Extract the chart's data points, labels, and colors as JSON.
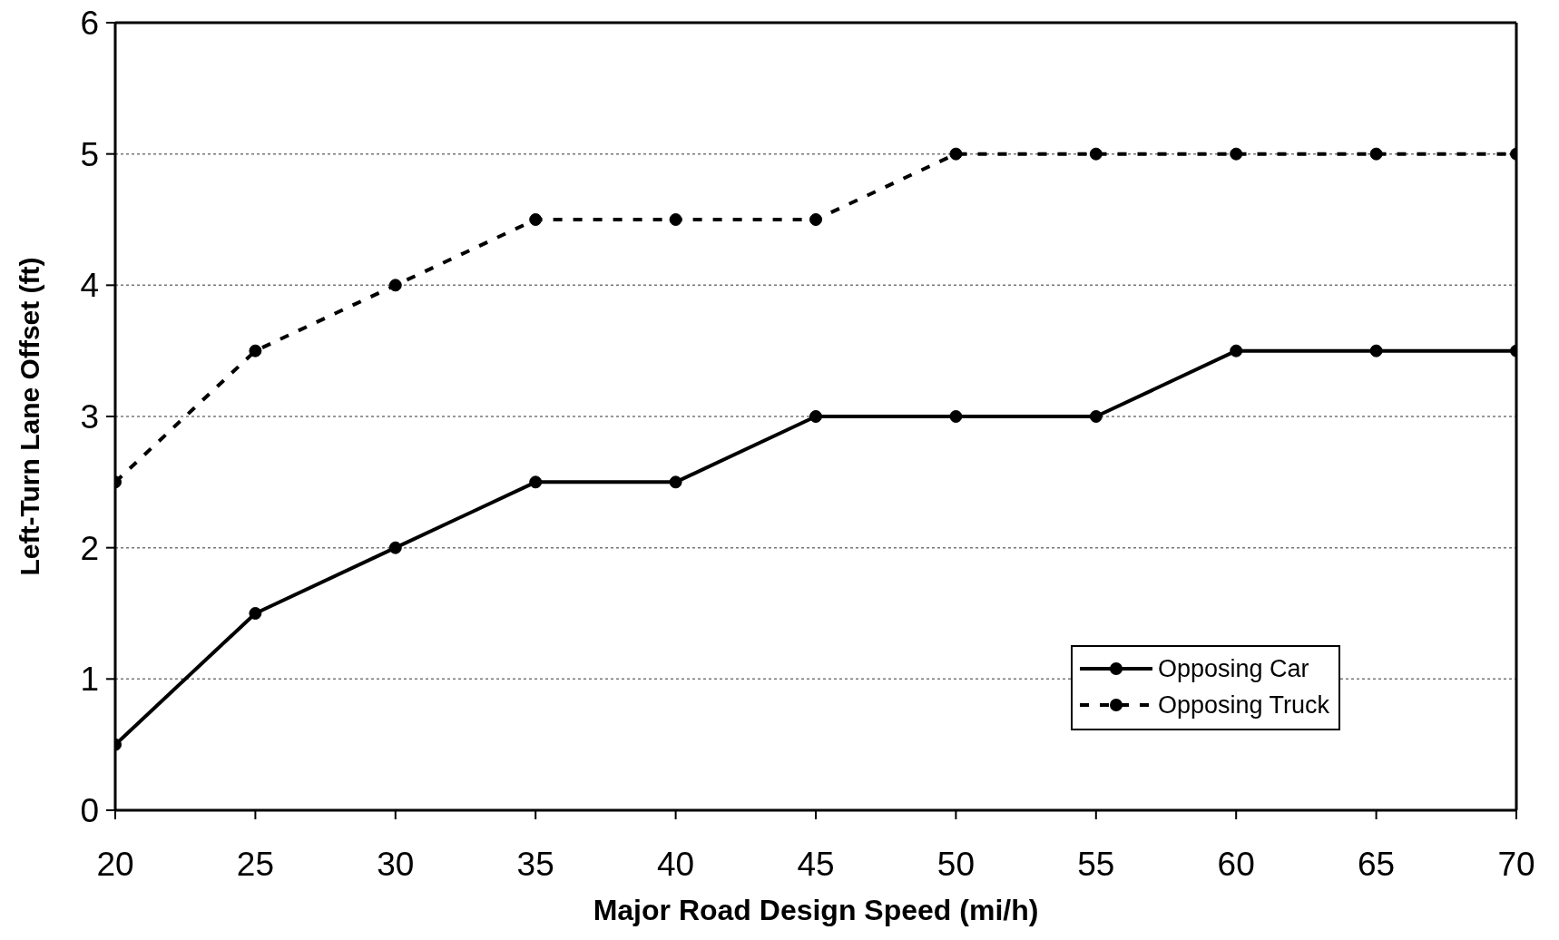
{
  "chart_data": {
    "type": "line",
    "xlabel": "Major Road Design Speed (mi/h)",
    "ylabel": "Left-Turn Lane Offset (ft)",
    "x": [
      20,
      25,
      30,
      35,
      40,
      45,
      50,
      55,
      60,
      65,
      70
    ],
    "series": [
      {
        "name": "Opposing Car",
        "color": "#000000",
        "line_style": "solid",
        "values": [
          0.5,
          1.5,
          2,
          2.5,
          2.5,
          3,
          3,
          3,
          3.5,
          3.5,
          3.5
        ]
      },
      {
        "name": "Opposing Truck",
        "color": "#000000",
        "line_style": "dashed",
        "values": [
          2.5,
          3.5,
          4,
          4.5,
          4.5,
          4.5,
          5,
          5,
          5,
          5,
          5
        ]
      }
    ],
    "xlim": [
      20,
      70
    ],
    "xticks": [
      20,
      25,
      30,
      35,
      40,
      45,
      50,
      55,
      60,
      65,
      70
    ],
    "ylim": [
      0,
      6
    ],
    "yticks": [
      0,
      1,
      2,
      3,
      4,
      5,
      6
    ],
    "grid": "y",
    "legend": "bottom right",
    "marker": "circle"
  }
}
